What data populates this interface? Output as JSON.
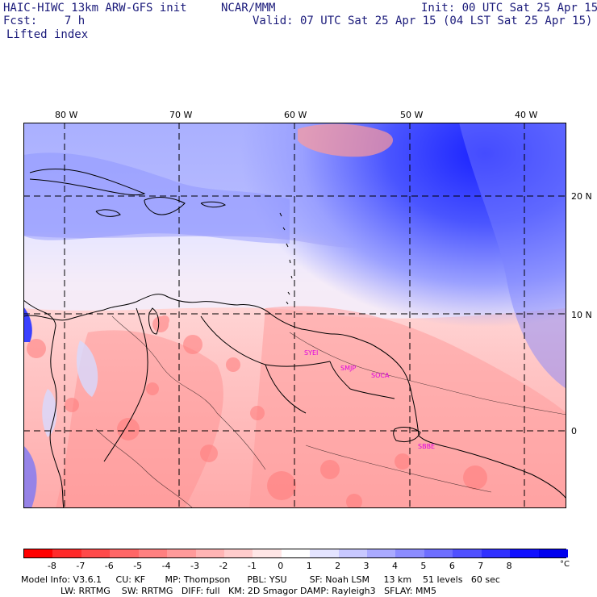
{
  "header": {
    "model": "HAIC-HIWC 13km ARW-GFS init",
    "org": "NCAR/MMM",
    "init": "Init: 00 UTC Sat 25 Apr 15",
    "fcst": "Fcst:    7 h",
    "valid": "Valid: 07 UTC Sat 25 Apr 15 (04 LST Sat 25 Apr 15)",
    "field": "Lifted index"
  },
  "map": {
    "lon_labels": [
      "80 W",
      "70 W",
      "60 W",
      "50 W",
      "40 W"
    ],
    "lat_labels": [
      "20 N",
      "10 N",
      "0"
    ],
    "stations": [
      "SYEI",
      "SMJP",
      "SOCA",
      "SBBE"
    ]
  },
  "colorbar": {
    "ticks": [
      "-8",
      "-7",
      "-6",
      "-5",
      "-4",
      "-3",
      "-2",
      "-1",
      "0",
      "1",
      "2",
      "3",
      "4",
      "5",
      "6",
      "7",
      "8"
    ],
    "unit": "°C",
    "colors": [
      "#ff0000",
      "#ff2a2a",
      "#ff4a4a",
      "#ff6666",
      "#ff8080",
      "#ff9a9a",
      "#ffb4b4",
      "#ffcccc",
      "#ffe6e6",
      "#ffffff",
      "#e4e4ff",
      "#c8c8ff",
      "#aaaaff",
      "#8c8cff",
      "#6e6eff",
      "#5050ff",
      "#3030ff",
      "#1010ff",
      "#0000ee"
    ]
  },
  "footer": {
    "line1": "Model Info: V3.6.1     CU: KF       MP: Thompson      PBL: YSU        SF: Noah LSM     13 km    51 levels   60 sec",
    "line2": "              LW: RRTMG    SW: RRTMG   DIFF: full   KM: 2D Smagor DAMP: Rayleigh3   SFLAY: MM5"
  }
}
